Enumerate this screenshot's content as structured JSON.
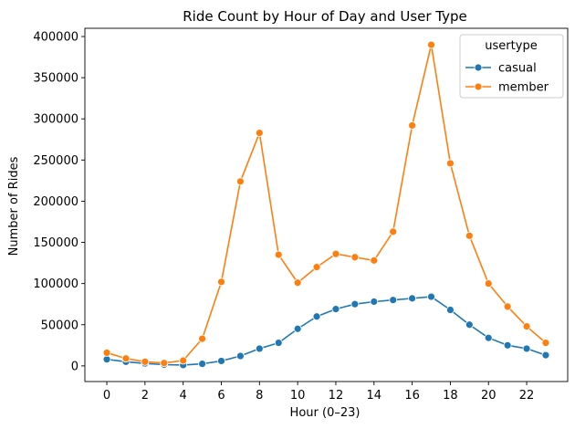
{
  "chart_data": {
    "type": "line",
    "title": "Ride Count by Hour of Day and User Type",
    "xlabel": "Hour (0–23)",
    "ylabel": "Number of Rides",
    "x": [
      0,
      1,
      2,
      3,
      4,
      5,
      6,
      7,
      8,
      9,
      10,
      11,
      12,
      13,
      14,
      15,
      16,
      17,
      18,
      19,
      20,
      21,
      22,
      23
    ],
    "xticks": [
      0,
      2,
      4,
      6,
      8,
      10,
      12,
      14,
      16,
      18,
      20,
      22
    ],
    "yticks": [
      0,
      50000,
      100000,
      150000,
      200000,
      250000,
      300000,
      350000,
      400000
    ],
    "xlim": [
      -1.15,
      24.15
    ],
    "ylim": [
      -19000,
      410000
    ],
    "grid": false,
    "legend": {
      "title": "usertype",
      "placement": "top-right"
    },
    "series": [
      {
        "name": "casual",
        "color": "#1f77b4",
        "values": [
          8000,
          5000,
          3000,
          1500,
          1000,
          2500,
          6000,
          12000,
          21000,
          28000,
          45000,
          60000,
          69000,
          75000,
          78000,
          80000,
          82000,
          84000,
          68000,
          50000,
          34000,
          25000,
          21000,
          13000
        ]
      },
      {
        "name": "member",
        "color": "#ff7f0e",
        "values": [
          16000,
          9000,
          5000,
          3500,
          6500,
          33000,
          102000,
          224000,
          283000,
          135000,
          101000,
          120000,
          136000,
          132000,
          128000,
          163000,
          292000,
          390000,
          246000,
          158000,
          100000,
          72000,
          48000,
          28000
        ]
      }
    ]
  }
}
